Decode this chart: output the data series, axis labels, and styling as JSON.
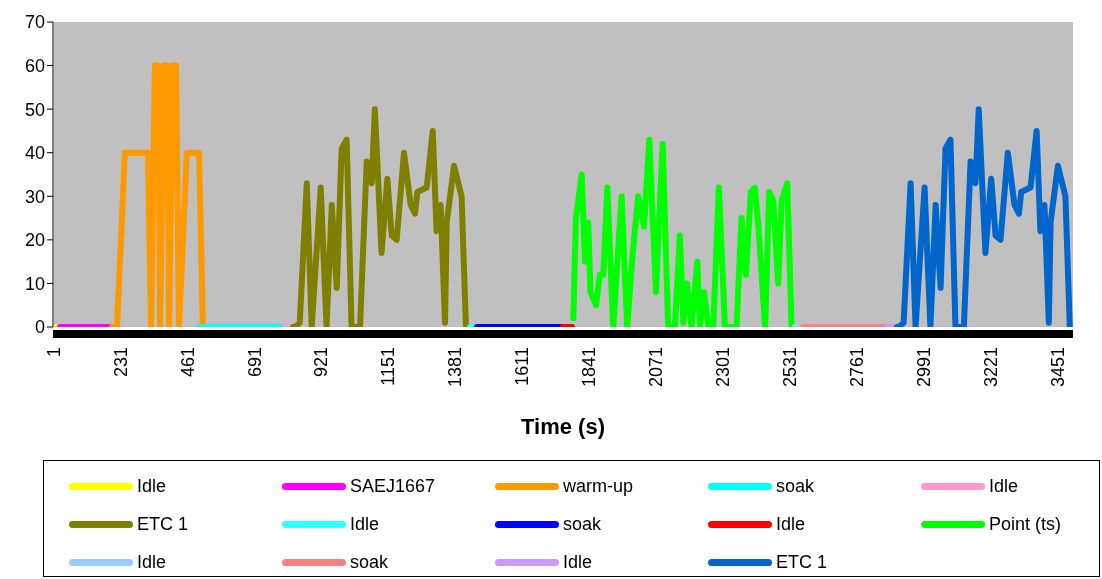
{
  "chart_data": {
    "type": "line",
    "xlabel": "Time (s)",
    "xlim": [
      1,
      3506
    ],
    "xticks": [
      1,
      231,
      461,
      691,
      921,
      1151,
      1381,
      1611,
      1841,
      2071,
      2301,
      2531,
      2761,
      2991,
      3221,
      3451
    ],
    "ylim": [
      0,
      70
    ],
    "yticks": [
      0,
      10,
      20,
      30,
      40,
      50,
      60,
      70
    ],
    "grid": false,
    "legend": "bottom",
    "series": [
      {
        "name": "Idle",
        "color": "#ffff00",
        "x": [
          1,
          18
        ],
        "values": [
          0,
          0
        ]
      },
      {
        "name": "SAEJ1667",
        "color": "#ff00ff",
        "x": [
          25,
          197
        ],
        "values": [
          0,
          0
        ]
      },
      {
        "name": "warm-up",
        "color": "#ff9900",
        "x": [
          204,
          221,
          248,
          327,
          338,
          351,
          362,
          369,
          382,
          393,
          400,
          413,
          424,
          434,
          461,
          503,
          516
        ],
        "values": [
          0,
          0,
          40,
          40,
          0,
          60,
          60,
          0,
          60,
          60,
          0,
          60,
          60,
          0,
          40,
          40,
          0
        ]
      },
      {
        "name": "soak",
        "color": "#00ffff",
        "x": [
          506,
          791
        ],
        "values": [
          0,
          0
        ]
      },
      {
        "name": "Idle",
        "color": "#ff99cc",
        "x": [
          798,
          822
        ],
        "values": [
          0,
          0
        ]
      },
      {
        "name": "ETC 1",
        "color": "#808000",
        "x": [
          826,
          832,
          849,
          873,
          890,
          921,
          941,
          959,
          976,
          993,
          1010,
          1027,
          1056,
          1079,
          1096,
          1107,
          1130,
          1150,
          1165,
          1182,
          1207,
          1230,
          1245,
          1253,
          1285,
          1306,
          1319,
          1333,
          1348,
          1354,
          1379,
          1405,
          1420
        ],
        "values": [
          0,
          0,
          1,
          33,
          0,
          32,
          0,
          28,
          9,
          41,
          43,
          0,
          0,
          38,
          33,
          50,
          17,
          34,
          21,
          20,
          40,
          28,
          26,
          31,
          32,
          45,
          22,
          28,
          1,
          24,
          37,
          30,
          0
        ]
      },
      {
        "name": "Idle",
        "color": "#33ffff",
        "x": [
          1434,
          1451
        ],
        "values": [
          0,
          0
        ]
      },
      {
        "name": "soak",
        "color": "#0000ff",
        "x": [
          1458,
          1753
        ],
        "values": [
          0,
          0
        ]
      },
      {
        "name": "Idle",
        "color": "#ff0000",
        "x": [
          1753,
          1785
        ],
        "values": [
          0,
          0
        ]
      },
      {
        "name": "Point (ts)",
        "color": "#00ff00",
        "x": [
          1789,
          1798,
          1818,
          1829,
          1840,
          1848,
          1867,
          1880,
          1892,
          1906,
          1926,
          1955,
          1974,
          1993,
          2012,
          2032,
          2050,
          2073,
          2096,
          2115,
          2138,
          2155,
          2167,
          2180,
          2195,
          2215,
          2224,
          2238,
          2253,
          2270,
          2289,
          2310,
          2350,
          2367,
          2382,
          2399,
          2413,
          2425,
          2448,
          2462,
          2476,
          2493,
          2505,
          2524,
          2539
        ],
        "values": [
          2,
          25,
          35,
          15,
          24,
          8,
          5,
          12,
          12,
          32,
          0,
          30,
          0,
          17,
          30,
          23,
          43,
          8,
          42,
          0,
          0,
          21,
          1,
          10,
          0,
          15,
          0,
          8,
          0,
          0,
          32,
          0,
          0,
          25,
          12,
          31,
          32,
          23,
          0,
          31,
          29,
          10,
          29,
          33,
          0
        ]
      },
      {
        "name": "Idle",
        "color": "#99ccff",
        "x": [
          2551,
          2568
        ],
        "values": [
          0,
          0
        ]
      },
      {
        "name": "soak",
        "color": "#ff8080",
        "x": [
          2578,
          2867
        ],
        "values": [
          0,
          0
        ]
      },
      {
        "name": "Idle",
        "color": "#cc99ff",
        "x": [
          2870,
          2901
        ],
        "values": [
          0,
          0
        ]
      },
      {
        "name": "ETC 1",
        "color": "#0066cc",
        "x": [
          2901,
          2907,
          2924,
          2948,
          2965,
          2996,
          3016,
          3034,
          3051,
          3068,
          3085,
          3102,
          3131,
          3154,
          3171,
          3182,
          3205,
          3225,
          3240,
          3257,
          3282,
          3305,
          3320,
          3328,
          3360,
          3381,
          3394,
          3408,
          3423,
          3429,
          3454,
          3480,
          3495
        ],
        "values": [
          0,
          0,
          1,
          33,
          0,
          32,
          0,
          28,
          9,
          41,
          43,
          0,
          0,
          38,
          33,
          50,
          17,
          34,
          21,
          20,
          40,
          28,
          26,
          31,
          32,
          45,
          22,
          28,
          1,
          24,
          37,
          30,
          0
        ]
      }
    ]
  }
}
